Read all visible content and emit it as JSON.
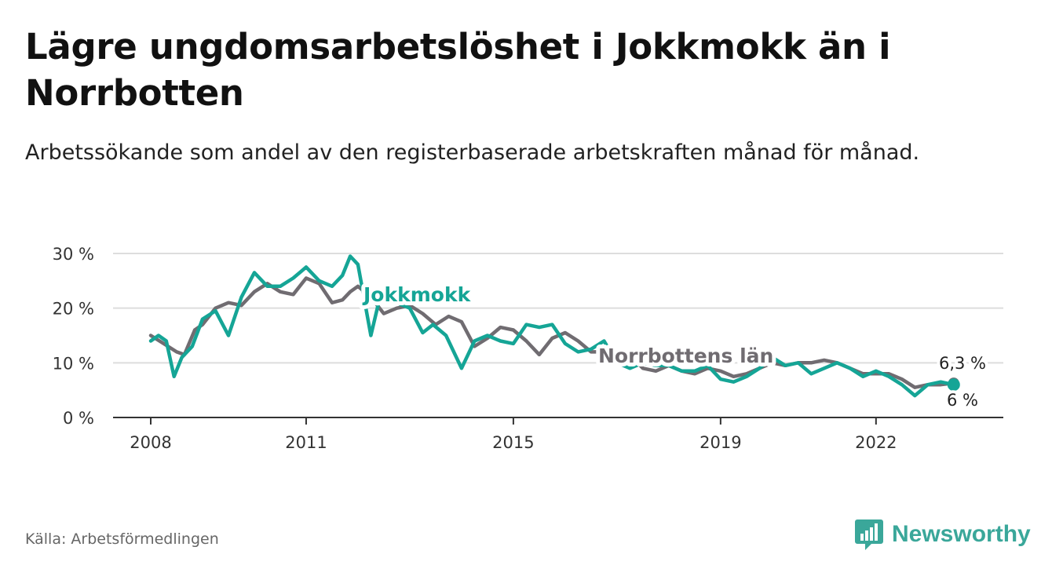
{
  "title": "Lägre ungdomsarbetslöshet i Jokkmokk än i Norrbotten",
  "subtitle": "Arbetssökande som andel av den registerbaserade arbetskraften månad för månad.",
  "source": "Källa: Arbetsförmedlingen",
  "brand": {
    "name": "Newsworthy",
    "icon": "newsworthy-logo-icon"
  },
  "colors": {
    "jokkmokk": "#15a596",
    "norrbotten": "#706c71",
    "grid": "#dddddd",
    "axis": "#333333"
  },
  "chart_data": {
    "type": "line",
    "title": "Lägre ungdomsarbetslöshet i Jokkmokk än i Norrbotten",
    "xlabel": "",
    "ylabel": "",
    "xlim": [
      2008.0,
      2023.7
    ],
    "ylim": [
      0,
      30
    ],
    "y_ticks": [
      0,
      10,
      20,
      30
    ],
    "y_tick_labels": [
      "0 %",
      "10 %",
      "20 %",
      "30 %"
    ],
    "x_ticks": [
      2008,
      2011,
      2015,
      2019,
      2022
    ],
    "x_tick_labels": [
      "2008",
      "2011",
      "2015",
      "2019",
      "2022"
    ],
    "grid": true,
    "legend": "inline",
    "series": [
      {
        "name": "Norrbottens län",
        "label": "Norrbottens län",
        "color": "#706c71",
        "x": [
          2008.0,
          2008.25,
          2008.5,
          2008.65,
          2008.85,
          2009.0,
          2009.25,
          2009.5,
          2009.75,
          2010.0,
          2010.25,
          2010.5,
          2010.75,
          2011.0,
          2011.25,
          2011.5,
          2011.7,
          2011.85,
          2012.0,
          2012.25,
          2012.5,
          2012.75,
          2013.0,
          2013.25,
          2013.5,
          2013.75,
          2014.0,
          2014.25,
          2014.5,
          2014.75,
          2015.0,
          2015.25,
          2015.5,
          2015.75,
          2016.0,
          2016.25,
          2016.5,
          2016.75,
          2017.0,
          2017.25,
          2017.5,
          2017.75,
          2018.0,
          2018.25,
          2018.5,
          2018.75,
          2019.0,
          2019.25,
          2019.5,
          2019.75,
          2020.0,
          2020.25,
          2020.5,
          2020.75,
          2021.0,
          2021.25,
          2021.5,
          2021.75,
          2022.0,
          2022.25,
          2022.5,
          2022.75,
          2023.0,
          2023.25,
          2023.5
        ],
        "values": [
          15,
          13.5,
          12,
          11.5,
          16,
          17,
          20,
          21,
          20.5,
          23,
          24.5,
          23,
          22.5,
          25.5,
          24.5,
          21,
          21.5,
          23,
          24,
          22,
          19,
          20,
          20.5,
          19,
          17,
          18.5,
          17.5,
          13,
          14.5,
          16.5,
          16,
          14,
          11.5,
          14.5,
          15.5,
          14,
          12,
          12,
          12,
          11.5,
          9,
          8.5,
          9.5,
          8.5,
          8,
          9,
          8.5,
          7.5,
          8,
          9,
          10,
          9.5,
          10,
          10,
          10.5,
          10,
          9,
          8,
          8,
          8,
          7,
          5.5,
          6,
          6,
          6.3
        ],
        "end_label": "6,3 %"
      },
      {
        "name": "Jokkmokk",
        "label": "Jokkmokk",
        "color": "#15a596",
        "x": [
          2008.0,
          2008.15,
          2008.3,
          2008.45,
          2008.6,
          2008.8,
          2009.0,
          2009.25,
          2009.5,
          2009.75,
          2010.0,
          2010.25,
          2010.5,
          2010.75,
          2011.0,
          2011.25,
          2011.5,
          2011.7,
          2011.85,
          2012.0,
          2012.25,
          2012.4,
          2012.55,
          2012.75,
          2013.0,
          2013.25,
          2013.45,
          2013.7,
          2014.0,
          2014.25,
          2014.5,
          2014.75,
          2015.0,
          2015.25,
          2015.5,
          2015.75,
          2016.0,
          2016.25,
          2016.5,
          2016.75,
          2017.0,
          2017.25,
          2017.5,
          2017.75,
          2018.0,
          2018.25,
          2018.5,
          2018.75,
          2019.0,
          2019.25,
          2019.5,
          2019.75,
          2020.0,
          2020.25,
          2020.5,
          2020.75,
          2021.0,
          2021.25,
          2021.5,
          2021.75,
          2022.0,
          2022.25,
          2022.5,
          2022.75,
          2023.0,
          2023.25,
          2023.5
        ],
        "values": [
          14,
          15,
          14,
          7.5,
          11,
          13,
          18,
          19.5,
          15,
          22,
          26.5,
          24,
          24,
          25.5,
          27.5,
          25,
          24,
          26,
          29.5,
          28,
          15,
          21,
          22.5,
          21,
          20,
          15.5,
          17,
          15,
          9,
          14,
          15,
          14,
          13.5,
          17,
          16.5,
          17,
          13.5,
          12,
          12.5,
          14,
          10,
          9,
          10,
          9.5,
          9.5,
          8.5,
          8.5,
          9.5,
          7,
          6.5,
          7.5,
          9,
          11,
          9.5,
          10,
          8,
          9,
          10,
          9,
          7.5,
          8.5,
          7.5,
          6,
          4,
          6,
          6.5,
          6
        ],
        "end_label": "6 %"
      }
    ]
  }
}
